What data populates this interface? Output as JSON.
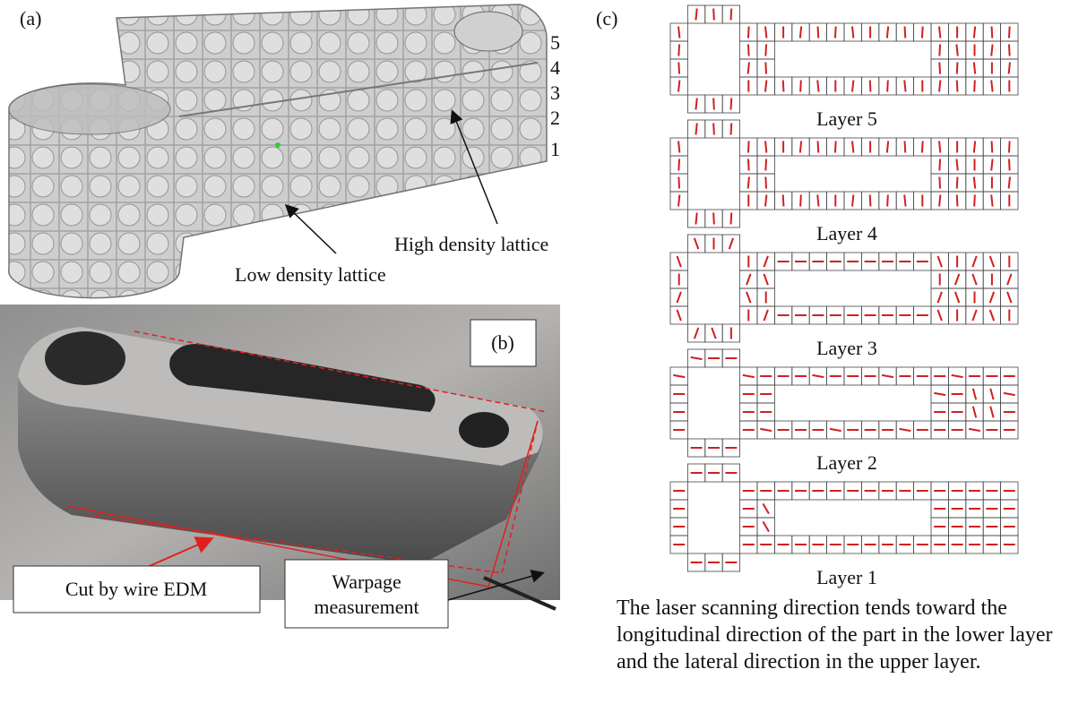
{
  "panel_a": {
    "label": "(a)",
    "layer_numbers": [
      "5",
      "4",
      "3",
      "2",
      "1"
    ],
    "annotations": [
      "High density lattice",
      "Low density lattice"
    ]
  },
  "panel_b": {
    "label": "(b)",
    "callouts": [
      "Cut by wire EDM",
      "Warpage measurement"
    ]
  },
  "panel_c": {
    "label": "(c)",
    "layers": [
      "Layer 5",
      "Layer 4",
      "Layer 3",
      "Layer 2",
      "Layer 1"
    ],
    "caption": "The laser scanning direction tends toward the longitudinal direction of the part in the lower layer and the lateral direction in the upper layer."
  }
}
